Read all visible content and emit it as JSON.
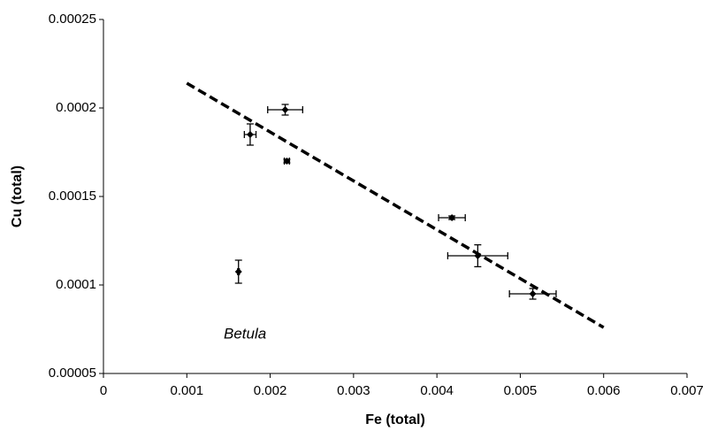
{
  "chart_data": {
    "type": "scatter",
    "x_label": "Fe (total)",
    "y_label": "Cu (total)",
    "annotation": "Betula",
    "xlim": [
      0,
      0.007
    ],
    "xticks": [
      0,
      0.001,
      0.002,
      0.003,
      0.004,
      0.005,
      0.006,
      0.007
    ],
    "ylim": [
      5e-05,
      0.00025
    ],
    "yticks": [
      5e-05,
      0.0001,
      0.00015,
      0.0002,
      0.00025
    ],
    "grid": false,
    "series": [
      {
        "color": "#000000",
        "x": [
          0.00218,
          0.00176,
          0.0022,
          0.00418,
          0.00449,
          0.00515,
          0.00162
        ],
        "values": [
          0.000199,
          0.000185,
          0.00017,
          0.000138,
          0.0001165,
          9.5e-05,
          0.0001075
        ],
        "xerr": [
          0.00021,
          7e-05,
          3e-05,
          0.00016,
          0.00036,
          0.00028,
          1e-05
        ],
        "yerr": [
          3e-06,
          6e-06,
          1e-06,
          1e-06,
          6.2e-06,
          3e-06,
          6.5e-06
        ]
      }
    ],
    "trendline": {
      "x": [
        0.001,
        0.006
      ],
      "y": [
        0.000214,
        7.6e-05
      ],
      "color": "#000000"
    }
  }
}
